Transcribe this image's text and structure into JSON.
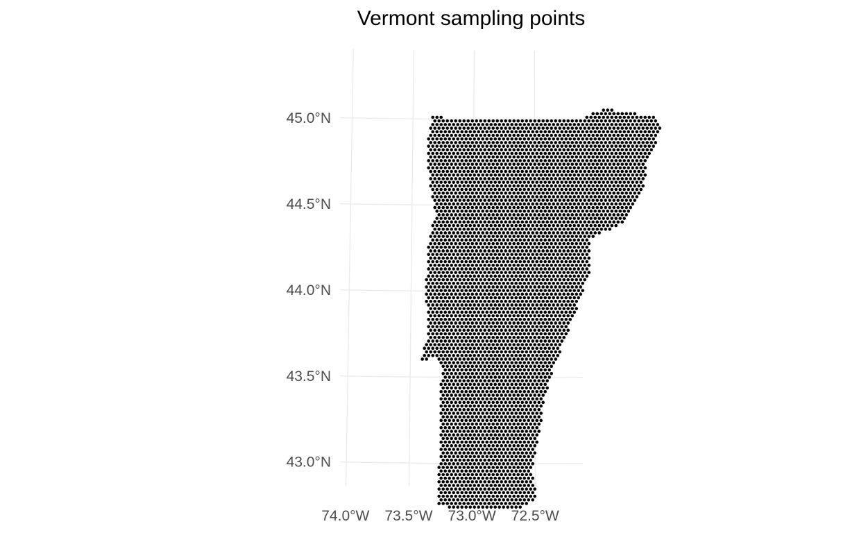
{
  "chart_data": {
    "type": "scatter",
    "title": "Vermont sampling points",
    "xlabel": "",
    "ylabel": "",
    "x_ticks": [
      {
        "value": -74.0,
        "label": "74.0°W"
      },
      {
        "value": -73.5,
        "label": "73.5°W"
      },
      {
        "value": -73.0,
        "label": "73.0°W"
      },
      {
        "value": -72.5,
        "label": "72.5°W"
      }
    ],
    "y_ticks": [
      {
        "value": 45.0,
        "label": "45.0°N"
      },
      {
        "value": 44.5,
        "label": "44.5°N"
      },
      {
        "value": 44.0,
        "label": "44.0°N"
      },
      {
        "value": 43.5,
        "label": "43.5°N"
      },
      {
        "value": 43.0,
        "label": "43.0°N"
      }
    ],
    "grid": true,
    "point_color": "#000000",
    "grid_color": "#ebebeb",
    "description_points": "Regular hexagonal grid of sampling points covering the state of Vermont",
    "boundary_lonlat": [
      [
        -73.34,
        45.01
      ],
      [
        -73.0,
        45.01
      ],
      [
        -72.5,
        45.01
      ],
      [
        -72.1,
        45.01
      ],
      [
        -71.92,
        45.06
      ],
      [
        -71.5,
        45.01
      ],
      [
        -71.46,
        44.93
      ],
      [
        -71.58,
        44.75
      ],
      [
        -71.61,
        44.59
      ],
      [
        -71.78,
        44.4
      ],
      [
        -72.05,
        44.3
      ],
      [
        -72.06,
        44.1
      ],
      [
        -72.14,
        43.95
      ],
      [
        -72.19,
        43.85
      ],
      [
        -72.35,
        43.55
      ],
      [
        -72.43,
        43.35
      ],
      [
        -72.46,
        43.18
      ],
      [
        -72.53,
        42.95
      ],
      [
        -72.48,
        42.8
      ],
      [
        -72.66,
        42.73
      ],
      [
        -72.93,
        42.73
      ],
      [
        -73.27,
        42.75
      ],
      [
        -73.26,
        43.1
      ],
      [
        -73.25,
        43.56
      ],
      [
        -73.3,
        43.63
      ],
      [
        -73.42,
        43.58
      ],
      [
        -73.36,
        43.75
      ],
      [
        -73.38,
        44.0
      ],
      [
        -73.37,
        44.25
      ],
      [
        -73.31,
        44.45
      ],
      [
        -73.35,
        44.61
      ],
      [
        -73.39,
        44.8
      ],
      [
        -73.34,
        45.01
      ]
    ]
  }
}
